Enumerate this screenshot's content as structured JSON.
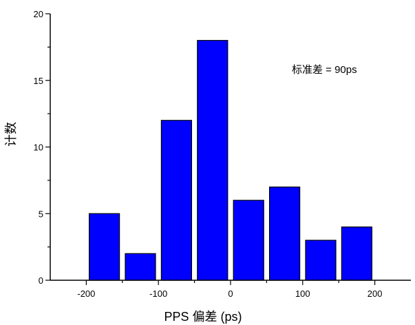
{
  "chart_data": {
    "type": "bar",
    "title": "",
    "xlabel": "PPS 偏差 (ps)",
    "ylabel": "计数",
    "x": [
      -175,
      -125,
      -75,
      -25,
      25,
      75,
      125,
      175
    ],
    "values": [
      5,
      2,
      12,
      18,
      6,
      7,
      3,
      4
    ],
    "xlim": [
      -250,
      250
    ],
    "ylim": [
      0,
      20
    ],
    "x_ticks": [
      "-200",
      "-100",
      "0",
      "100",
      "200"
    ],
    "y_ticks": [
      "0",
      "5",
      "10",
      "15",
      "20"
    ],
    "annotation": "标准差 = 90ps",
    "bar_color": "#0000FF",
    "bar_edge_color": "#000000",
    "grid": false
  }
}
